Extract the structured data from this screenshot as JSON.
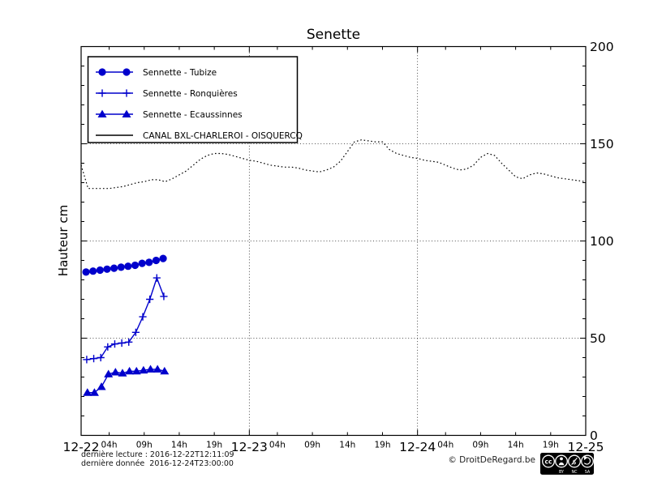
{
  "chart": {
    "title": "Senette",
    "ylabel": "Hauteur cm",
    "footer": {
      "line1": "dernière lecture : 2016-12-22T12:11:09",
      "line2": "dernière donnée  2016-12-24T23:00:00"
    },
    "copyright": "© DroitDeRegard.be",
    "cc_badge": {
      "logo": "cc",
      "by": "BY",
      "nc": "NC",
      "sa": "SA"
    }
  },
  "chart_data": {
    "type": "line",
    "title": "Senette",
    "xlabel": "",
    "ylabel": "Hauteur cm",
    "ylim": [
      0,
      200
    ],
    "yticks": [
      0,
      50,
      100,
      150,
      200
    ],
    "y_minor_step": 10,
    "grid": {
      "style": "dotted",
      "y_at": [
        50,
        100,
        150
      ],
      "x_at_hours": [
        24,
        48
      ]
    },
    "legend_position": "upper-left",
    "x_axis": {
      "kind": "datetime",
      "start": "2016-12-22T00:00",
      "end": "2016-12-25T00:00",
      "total_hours": 72,
      "major_tick_hours": [
        0,
        24,
        48,
        72
      ],
      "major_tick_labels": [
        "12-22",
        "12-23",
        "12-24",
        "12-25"
      ],
      "minor_tick_hours": [
        4,
        9,
        14,
        19
      ],
      "minor_tick_labels": [
        "04h",
        "09h",
        "14h",
        "19h"
      ]
    },
    "series": [
      {
        "name": "Sennette - Tubize",
        "color": "#0000cc",
        "marker": "circle",
        "linestyle": "solid",
        "t_start_hours": 0.7,
        "t_step_hours": 1,
        "values_cm": [
          84,
          84.5,
          85,
          85.5,
          86,
          86.5,
          87,
          87.5,
          88.5,
          89,
          90,
          91
        ]
      },
      {
        "name": "Sennette - Ronquières",
        "color": "#0000cc",
        "marker": "plus",
        "linestyle": "solid",
        "t_start_hours": 0.8,
        "t_step_hours": 1,
        "values_cm": [
          39,
          39.5,
          40,
          45.5,
          47,
          47.5,
          48,
          53,
          61,
          70,
          81,
          71.5
        ]
      },
      {
        "name": "Sennette - Ecaussinnes",
        "color": "#0000cc",
        "marker": "triangle",
        "linestyle": "solid",
        "t_start_hours": 0.9,
        "t_step_hours": 1,
        "values_cm": [
          22,
          22,
          25,
          31.5,
          32.5,
          32,
          33,
          33,
          33.5,
          34,
          34,
          33
        ]
      },
      {
        "name": "CANAL BXL-CHARLEROI  - OISQUERCQ",
        "color": "#000000",
        "marker": "none",
        "linestyle": "dotted",
        "t_start_hours": 0,
        "t_step_hours": 1,
        "values_cm": [
          139,
          127,
          127,
          127,
          127,
          127.5,
          128,
          129,
          130,
          130.5,
          131.5,
          131.5,
          130.5,
          132,
          134,
          136,
          139,
          142,
          144,
          145,
          145,
          144.5,
          143.5,
          142.5,
          141.5,
          141,
          140,
          139,
          138.5,
          138,
          138,
          137.5,
          136.5,
          136,
          135.5,
          136.5,
          138,
          141,
          146,
          151,
          152,
          151.5,
          151,
          151,
          147,
          145,
          144,
          143,
          142.5,
          141.5,
          141,
          140.5,
          139,
          137.5,
          136.5,
          137,
          139,
          143,
          145,
          144,
          140,
          136.5,
          133,
          132,
          134,
          135,
          134.5,
          133.5,
          132.5,
          132,
          131.5,
          131,
          130.5
        ]
      }
    ]
  }
}
